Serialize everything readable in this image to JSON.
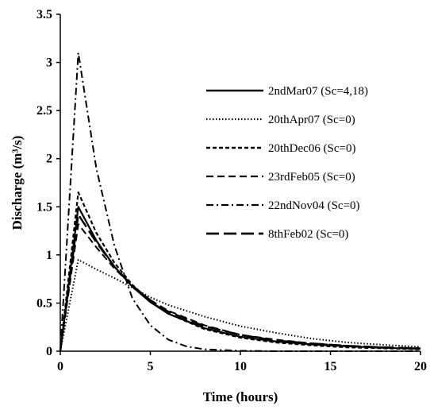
{
  "chart_data": {
    "type": "line",
    "title": "",
    "xlabel": "Time (hours)",
    "ylabel": "Discharge (m³/s)",
    "xlim": [
      0,
      20
    ],
    "ylim": [
      0,
      3.5
    ],
    "x_ticks": [
      "0",
      "5",
      "10",
      "15",
      "20"
    ],
    "y_ticks": [
      "0",
      "0.5",
      "1",
      "1.5",
      "2",
      "2.5",
      "3",
      "3.5"
    ],
    "grid": false,
    "legend_position": "right",
    "series": [
      {
        "name": "2ndMar07 (Sc=4,18)",
        "style": "solid",
        "x": [
          0,
          1,
          2,
          3,
          4,
          5,
          6,
          8,
          10,
          12,
          14,
          16,
          18,
          20
        ],
        "y": [
          0,
          1.5,
          1.15,
          0.88,
          0.67,
          0.51,
          0.39,
          0.24,
          0.15,
          0.1,
          0.07,
          0.05,
          0.035,
          0.025
        ]
      },
      {
        "name": "20thApr07 (Sc=0)",
        "style": "dotted",
        "x": [
          0,
          1,
          2,
          3,
          4,
          5,
          6,
          8,
          10,
          12,
          14,
          16,
          18,
          20
        ],
        "y": [
          0,
          0.95,
          0.85,
          0.76,
          0.66,
          0.56,
          0.48,
          0.36,
          0.26,
          0.19,
          0.13,
          0.09,
          0.065,
          0.045
        ]
      },
      {
        "name": "20thDec06 (Sc=0)",
        "style": "short-dash",
        "x": [
          0,
          1,
          2,
          3,
          4,
          5,
          6,
          8,
          10,
          12,
          14,
          16,
          18,
          20
        ],
        "y": [
          0,
          1.65,
          1.23,
          0.92,
          0.69,
          0.52,
          0.39,
          0.23,
          0.14,
          0.09,
          0.06,
          0.04,
          0.03,
          0.02
        ]
      },
      {
        "name": "23rdFeb05 (Sc=0)",
        "style": "dash",
        "x": [
          0,
          1,
          2,
          3,
          4,
          5,
          6,
          8,
          10,
          12,
          14,
          16,
          18,
          20
        ],
        "y": [
          0,
          1.32,
          1.08,
          0.86,
          0.68,
          0.53,
          0.42,
          0.27,
          0.17,
          0.12,
          0.08,
          0.055,
          0.04,
          0.03
        ]
      },
      {
        "name": "22ndNov04 (Sc=0)",
        "style": "dash-dot",
        "x": [
          0,
          1,
          2,
          3,
          4,
          5,
          6,
          7,
          8,
          10,
          12,
          14,
          16,
          18,
          20
        ],
        "y": [
          0,
          3.1,
          1.9,
          1.1,
          0.55,
          0.27,
          0.12,
          0.05,
          0.02,
          0.005,
          0,
          0,
          0,
          0,
          0
        ]
      },
      {
        "name": "8thFeb02 (Sc=0)",
        "style": "long-dash",
        "x": [
          0,
          1,
          2,
          3,
          4,
          5,
          6,
          8,
          10,
          12,
          14,
          16,
          18,
          20
        ],
        "y": [
          0,
          1.42,
          1.13,
          0.88,
          0.68,
          0.53,
          0.41,
          0.26,
          0.17,
          0.11,
          0.08,
          0.055,
          0.04,
          0.03
        ]
      }
    ]
  }
}
